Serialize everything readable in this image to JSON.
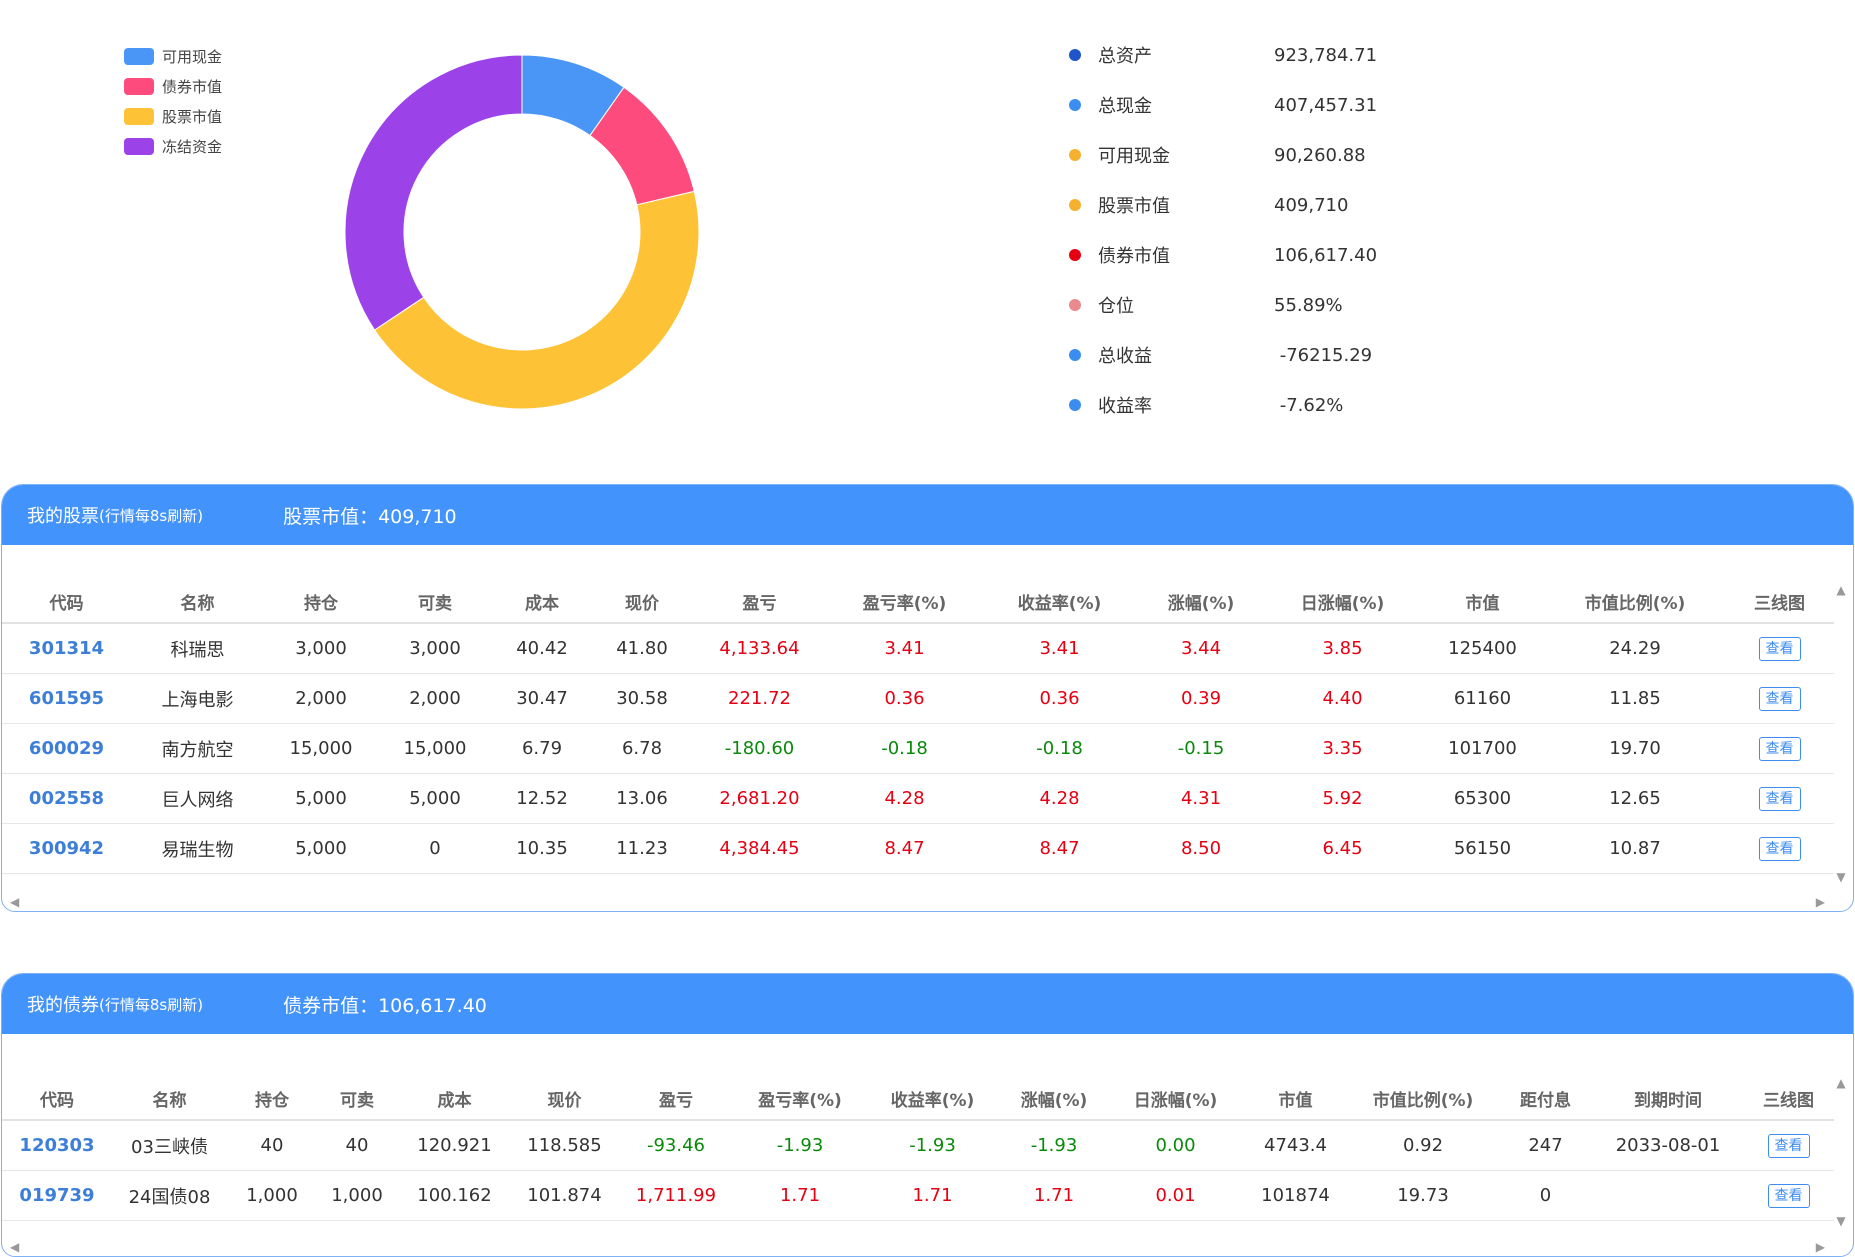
{
  "chart_data": {
    "type": "pie",
    "variant": "donut",
    "legend_position": "top-left",
    "categories": [
      "可用现金",
      "债券市值",
      "股票市值",
      "冻结资金"
    ],
    "values": [
      90260.88,
      106617.4,
      409710,
      317196.43
    ],
    "colors": [
      "#4a96f7",
      "#fd4b7e",
      "#fec236",
      "#9b43e9"
    ]
  },
  "summary": [
    {
      "label": "总资产",
      "value": "923,784.71",
      "color": "#1f55c9"
    },
    {
      "label": "总现金",
      "value": "407,457.31",
      "color": "#3b8ef0"
    },
    {
      "label": "可用现金",
      "value": "90,260.88",
      "color": "#f6b030"
    },
    {
      "label": "股票市值",
      "value": "409,710",
      "color": "#f6b030"
    },
    {
      "label": "债券市值",
      "value": "106,617.40",
      "color": "#e60012"
    },
    {
      "label": "仓位",
      "value": "55.89%",
      "color": "#e98a8e"
    },
    {
      "label": "总收益",
      "value": " -76215.29",
      "color": "#3b8ef0"
    },
    {
      "label": "收益率",
      "value": " -7.62%",
      "color": "#3b8ef0"
    }
  ],
  "stocks": {
    "title": "我的股票",
    "title_note": "(行情每8s刷新)",
    "mv_label": "股票市值：409,710",
    "headers": [
      "代码",
      "名称",
      "持仓",
      "可卖",
      "成本",
      "现价",
      "盈亏",
      "盈亏率(%)",
      "收益率(%)",
      "涨幅(%)",
      "日涨幅(%)",
      "市值",
      "市值比例(%)",
      "三线图"
    ],
    "view_label": "查看",
    "rows": [
      {
        "code": "301314",
        "name": "科瑞思",
        "hold": "3,000",
        "sell": "3,000",
        "cost": "40.42",
        "price": "41.80",
        "pl": "4,133.64",
        "plr": "3.41",
        "ret": "3.41",
        "chg": "3.44",
        "dchg": "3.85",
        "mv": "125400",
        "ratio": "24.29",
        "dir": [
          "red",
          "red",
          "red",
          "red",
          "red"
        ]
      },
      {
        "code": "601595",
        "name": "上海电影",
        "hold": "2,000",
        "sell": "2,000",
        "cost": "30.47",
        "price": "30.58",
        "pl": "221.72",
        "plr": "0.36",
        "ret": "0.36",
        "chg": "0.39",
        "dchg": "4.40",
        "mv": "61160",
        "ratio": "11.85",
        "dir": [
          "red",
          "red",
          "red",
          "red",
          "red"
        ]
      },
      {
        "code": "600029",
        "name": "南方航空",
        "hold": "15,000",
        "sell": "15,000",
        "cost": "6.79",
        "price": "6.78",
        "pl": "-180.60",
        "plr": "-0.18",
        "ret": "-0.18",
        "chg": "-0.15",
        "dchg": "3.35",
        "mv": "101700",
        "ratio": "19.70",
        "dir": [
          "green",
          "green",
          "green",
          "green",
          "red"
        ]
      },
      {
        "code": "002558",
        "name": "巨人网络",
        "hold": "5,000",
        "sell": "5,000",
        "cost": "12.52",
        "price": "13.06",
        "pl": "2,681.20",
        "plr": "4.28",
        "ret": "4.28",
        "chg": "4.31",
        "dchg": "5.92",
        "mv": "65300",
        "ratio": "12.65",
        "dir": [
          "red",
          "red",
          "red",
          "red",
          "red"
        ]
      },
      {
        "code": "300942",
        "name": "易瑞生物",
        "hold": "5,000",
        "sell": "0",
        "cost": "10.35",
        "price": "11.23",
        "pl": "4,384.45",
        "plr": "8.47",
        "ret": "8.47",
        "chg": "8.50",
        "dchg": "6.45",
        "mv": "56150",
        "ratio": "10.87",
        "dir": [
          "red",
          "red",
          "red",
          "red",
          "red"
        ]
      }
    ]
  },
  "bonds": {
    "title": "我的债券",
    "title_note": "(行情每8s刷新)",
    "mv_label": "债券市值：106,617.40",
    "headers": [
      "代码",
      "名称",
      "持仓",
      "可卖",
      "成本",
      "现价",
      "盈亏",
      "盈亏率(%)",
      "收益率(%)",
      "涨幅(%)",
      "日涨幅(%)",
      "市值",
      "市值比例(%)",
      "距付息",
      "到期时间",
      "三线图"
    ],
    "view_label": "查看",
    "rows": [
      {
        "code": "120303",
        "name": "03三峡债",
        "hold": "40",
        "sell": "40",
        "cost": "120.921",
        "price": "118.585",
        "pl": "-93.46",
        "plr": "-1.93",
        "ret": "-1.93",
        "chg": "-1.93",
        "dchg": "0.00",
        "mv": "4743.4",
        "ratio": "0.92",
        "days": "247",
        "due": "2033-08-01",
        "dir": [
          "green",
          "green",
          "green",
          "green",
          "green"
        ]
      },
      {
        "code": "019739",
        "name": "24国债08",
        "hold": "1,000",
        "sell": "1,000",
        "cost": "100.162",
        "price": "101.874",
        "pl": "1,711.99",
        "plr": "1.71",
        "ret": "1.71",
        "chg": "1.71",
        "dchg": "0.01",
        "mv": "101874",
        "ratio": "19.73",
        "days": "0",
        "due": "",
        "dir": [
          "red",
          "red",
          "red",
          "red",
          "red"
        ]
      }
    ]
  }
}
